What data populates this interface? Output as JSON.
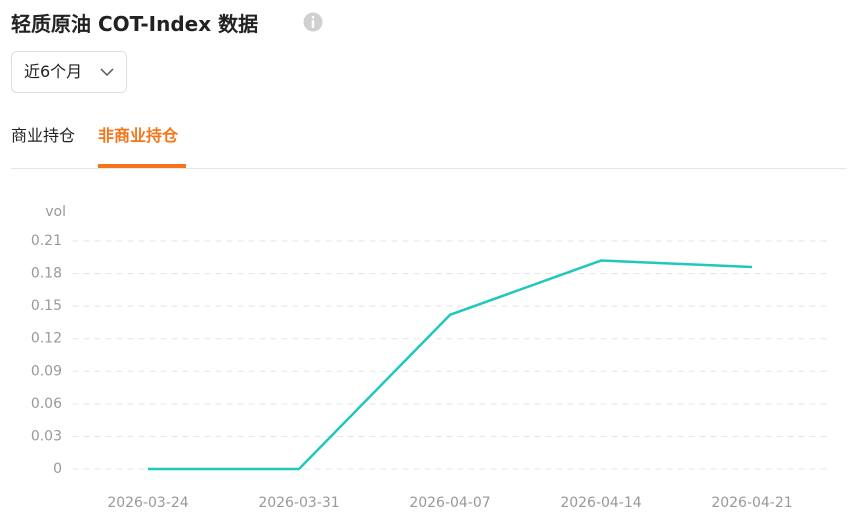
{
  "header": {
    "title": "轻质原油 COT-Index 数据"
  },
  "dropdown": {
    "label": "近6个月"
  },
  "tabs": [
    "商业持仓",
    "非商业持仓"
  ],
  "active_tab": 1,
  "chart_data": {
    "type": "line",
    "y_label": "vol",
    "categories": [
      "2026-03-24",
      "2026-03-31",
      "2026-04-07",
      "2026-04-14",
      "2026-04-21"
    ],
    "values": [
      0,
      0,
      0.142,
      0.192,
      0.186
    ],
    "color": "#1fc7bf",
    "ylim": [
      0,
      0.21
    ],
    "yticks": [
      0,
      0.03,
      0.06,
      0.09,
      0.12,
      0.15,
      0.18,
      0.21
    ],
    "grid": true
  }
}
